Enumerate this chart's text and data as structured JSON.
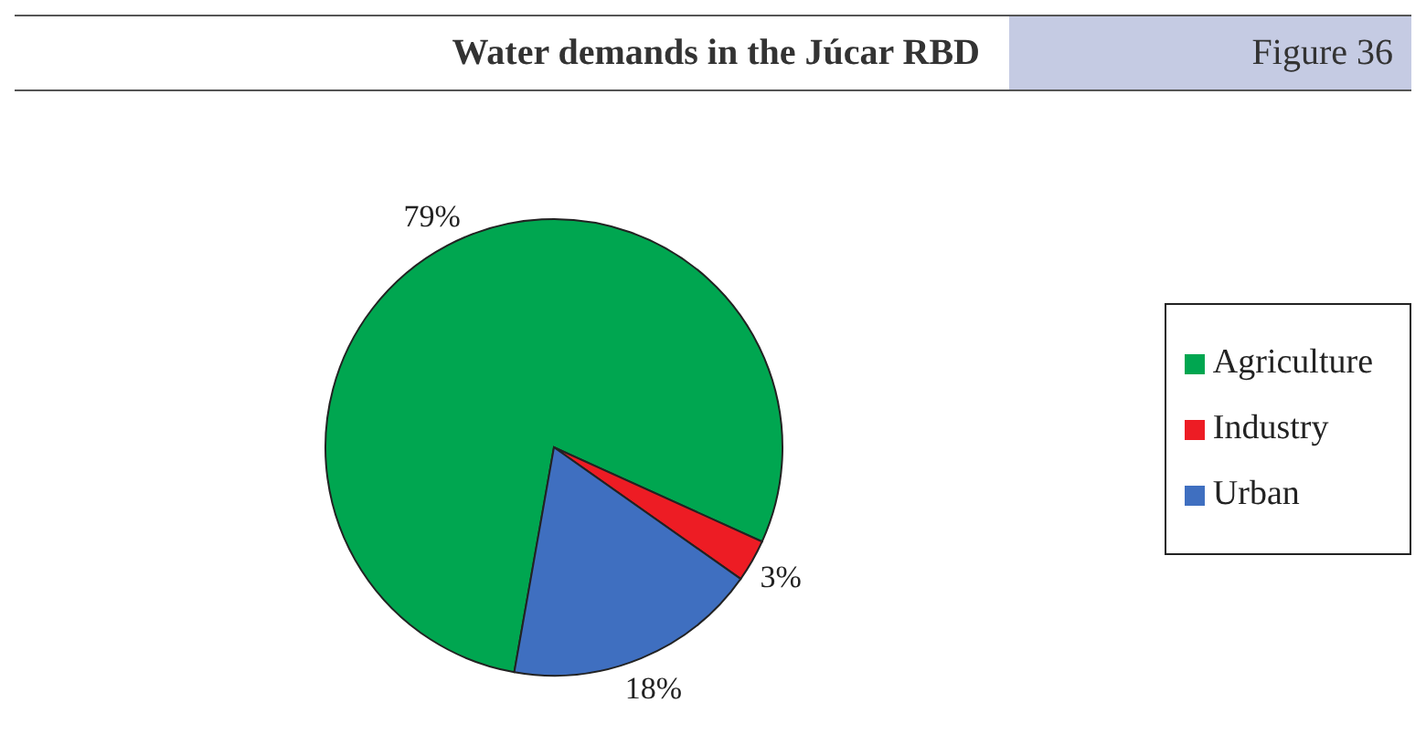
{
  "chart_data": {
    "type": "pie",
    "title": "Water demands in the Júcar RBD",
    "subtitle": "Figure 36",
    "categories": [
      "Agriculture",
      "Industry",
      "Urban"
    ],
    "values": [
      79,
      3,
      18
    ],
    "colors": [
      "#00a650",
      "#ed1c24",
      "#3f6fc0"
    ],
    "value_labels": [
      "79%",
      "3%",
      "18%"
    ],
    "legend": "right"
  }
}
